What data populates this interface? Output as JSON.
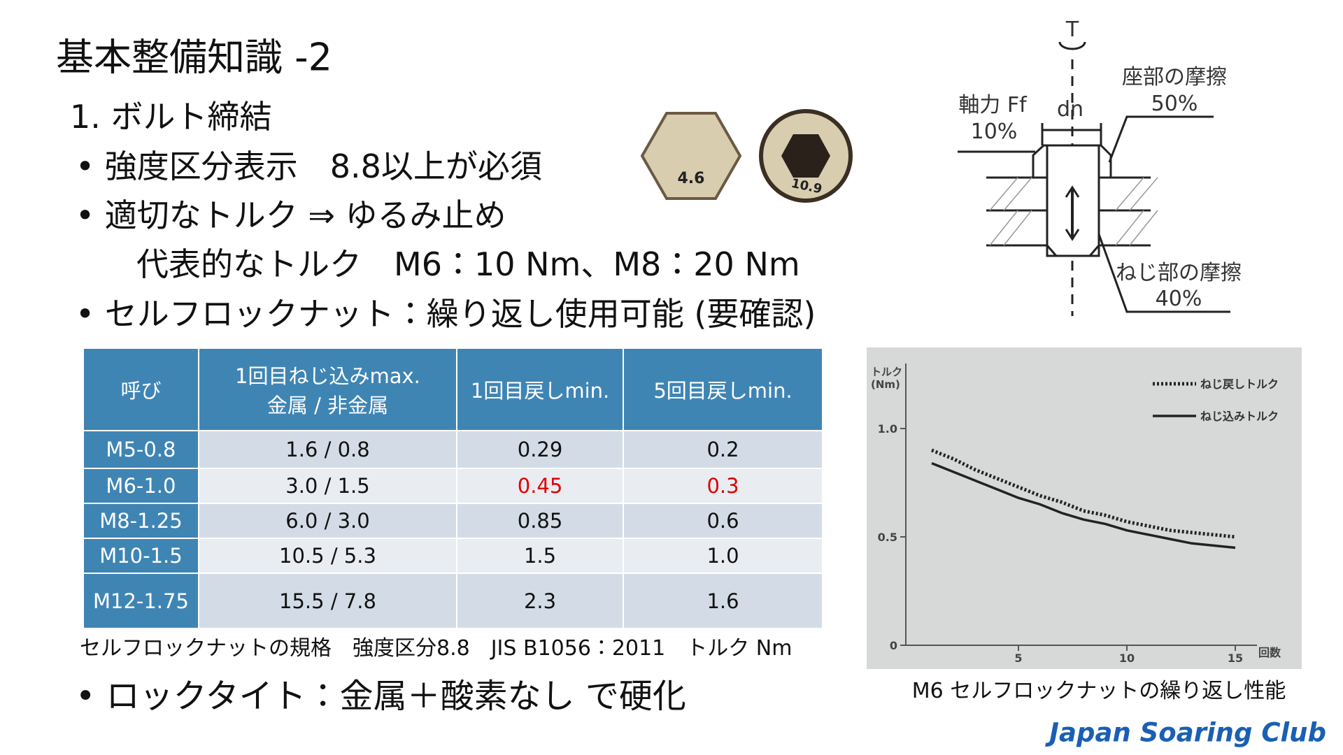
{
  "title": "基本整備知識 -2",
  "section": "1. ボルト締結",
  "bullets": [
    "• 強度区分表示　8.8以上が必須",
    "• 適切なトルク ⇒ ゆるみ止め",
    "代表的なトルク　M6：10 Nm、M8：20 Nm",
    "• セルフロックナット：繰り返し使用可能 (要確認)"
  ],
  "bolt_marks": [
    "4.6",
    "10.9"
  ],
  "diagram": {
    "torque_symbol": "T",
    "diameter": "dn",
    "axial_label": "軸力 Ff",
    "axial_pct": "10%",
    "seat_label": "座部の摩擦",
    "seat_pct": "50%",
    "thread_label": "ねじ部の摩擦",
    "thread_pct": "40%"
  },
  "table": {
    "header": [
      "呼び",
      [
        "1回目ねじ込みmax.",
        "金属 / 非金属"
      ],
      "1回目戻しmin.",
      "5回目戻しmin."
    ],
    "rows": [
      [
        "M5-0.8",
        "1.6 / 0.8",
        "0.29",
        "0.2"
      ],
      [
        "M6-1.0",
        "3.0 / 1.5",
        "0.45",
        "0.3"
      ],
      [
        "M8-1.25",
        "6.0 / 3.0",
        "0.85",
        "0.6"
      ],
      [
        "M10-1.5",
        "10.5 / 5.3",
        "1.5",
        "1.0"
      ],
      [
        "M12-1.75",
        "15.5 / 7.8",
        "2.3",
        "1.6"
      ]
    ],
    "highlight_color": "#e00000",
    "highlight_cells": [
      [
        1,
        2
      ],
      [
        1,
        3
      ]
    ],
    "caption": "セルフロックナットの規格　強度区分8.8　JIS B1056：2011　トルク Nm"
  },
  "last_bullet": "• ロックタイト：金属＋酸素なし で硬化",
  "graph": {
    "y_label": [
      "トルク",
      "(Nm)"
    ],
    "x_label": "回数",
    "xlim": [
      0,
      16
    ],
    "ylim": [
      0,
      1.3
    ],
    "xticks": [
      5,
      10,
      15
    ],
    "yticks": [
      0,
      0.5,
      {
        "value": 1,
        "label": "1.0"
      }
    ],
    "x": [
      1,
      2,
      3,
      4,
      5,
      6,
      7,
      8,
      9,
      10,
      11,
      12,
      13,
      14,
      15
    ],
    "series": [
      {
        "name": "ねじ戻しトルク",
        "style": "dotted",
        "values": [
          0.9,
          0.86,
          0.81,
          0.77,
          0.73,
          0.69,
          0.66,
          0.62,
          0.6,
          0.57,
          0.55,
          0.53,
          0.52,
          0.51,
          0.5
        ]
      },
      {
        "name": "ねじ込みトルク",
        "style": "solid",
        "values": [
          0.84,
          0.8,
          0.76,
          0.72,
          0.68,
          0.65,
          0.61,
          0.58,
          0.56,
          0.53,
          0.51,
          0.49,
          0.47,
          0.46,
          0.45
        ]
      }
    ],
    "caption": "M6 セルフロックナットの繰り返し性能"
  },
  "footer": "Japan Soaring Club"
}
